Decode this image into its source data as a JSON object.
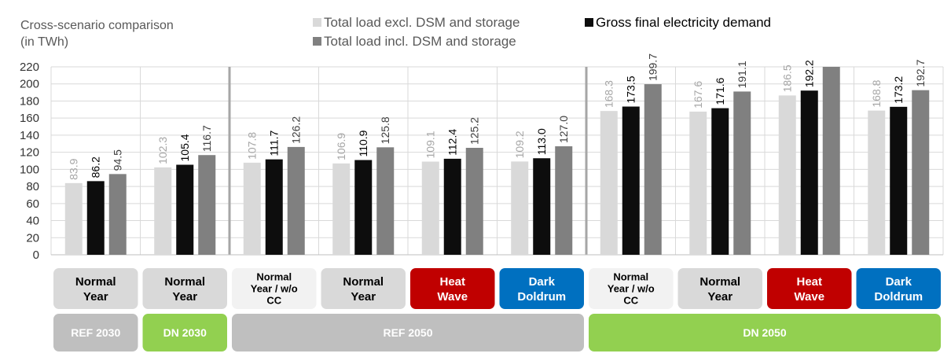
{
  "chart_data": {
    "type": "bar",
    "title": "Cross-scenario comparison",
    "title_unit": "(in TWh)",
    "ylim": [
      0,
      220
    ],
    "yticks": [
      0,
      20,
      40,
      60,
      80,
      100,
      120,
      140,
      160,
      180,
      200,
      220
    ],
    "grid": true,
    "legend_position": "top",
    "series": [
      {
        "name": "Total load excl. DSM and storage",
        "color": "#d9d9d9",
        "label_color": "#a6a6a6",
        "values": [
          83.9,
          102.3,
          107.8,
          106.9,
          109.1,
          109.2,
          168.3,
          167.6,
          186.5,
          168.8
        ],
        "labels": [
          "83.9",
          "102.3",
          "107.8",
          "106.9",
          "109.1",
          "109.2",
          "168.3",
          "167.6",
          "186.5",
          "168.8"
        ]
      },
      {
        "name": "Gross final electricity demand",
        "color": "#0d0d0d",
        "label_color": "#000000",
        "values": [
          86.2,
          105.4,
          111.7,
          110.9,
          112.4,
          113.0,
          173.5,
          171.6,
          192.2,
          173.2
        ],
        "labels": [
          "86.2",
          "105.4",
          "111.7",
          "110.9",
          "112.4",
          "113.0",
          "173.5",
          "171.6",
          "192.2",
          "173.2"
        ]
      },
      {
        "name": "Total load incl. DSM and storage",
        "color": "#808080",
        "label_color": "#404040",
        "values": [
          94.5,
          116.7,
          126.2,
          125.8,
          125.2,
          127.0,
          199.7,
          191.1,
          220,
          192.7
        ],
        "labels": [
          "94.5",
          "116.7",
          "126.2",
          "125.8",
          "125.2",
          "127.0",
          "199.7",
          "191.1",
          "",
          "192.7"
        ]
      }
    ],
    "legend_order": [
      0,
      2,
      1
    ],
    "categories": [
      {
        "lines": [
          "Normal",
          "Year"
        ],
        "style": "normal"
      },
      {
        "lines": [
          "Normal",
          "Year"
        ],
        "style": "normal"
      },
      {
        "lines": [
          "Normal",
          "Year / w/o",
          "CC"
        ],
        "style": "light"
      },
      {
        "lines": [
          "Normal",
          "Year"
        ],
        "style": "normal"
      },
      {
        "lines": [
          "Heat",
          "Wave"
        ],
        "style": "heat"
      },
      {
        "lines": [
          "Dark",
          "Doldrum"
        ],
        "style": "dark"
      },
      {
        "lines": [
          "Normal",
          "Year / w/o",
          "CC"
        ],
        "style": "light"
      },
      {
        "lines": [
          "Normal",
          "Year"
        ],
        "style": "normal"
      },
      {
        "lines": [
          "Heat",
          "Wave"
        ],
        "style": "heat"
      },
      {
        "lines": [
          "Dark",
          "Doldrum"
        ],
        "style": "dark"
      }
    ],
    "groups": [
      {
        "label": "REF 2030",
        "from": 0,
        "to": 0,
        "color": "#bfbfbf"
      },
      {
        "label": "DN 2030",
        "from": 1,
        "to": 1,
        "color": "#92d050"
      },
      {
        "label": "REF 2050",
        "from": 2,
        "to": 5,
        "color": "#bfbfbf"
      },
      {
        "label": "DN 2050",
        "from": 6,
        "to": 9,
        "color": "#92d050"
      }
    ],
    "category_colors": {
      "normal": {
        "bg": "#d9d9d9",
        "fg": "#000000"
      },
      "light": {
        "bg": "#f2f2f2",
        "fg": "#000000"
      },
      "heat": {
        "bg": "#c00000",
        "fg": "#ffffff"
      },
      "dark": {
        "bg": "#0070c0",
        "fg": "#ffffff"
      }
    },
    "separators_after": [
      1,
      5
    ]
  }
}
